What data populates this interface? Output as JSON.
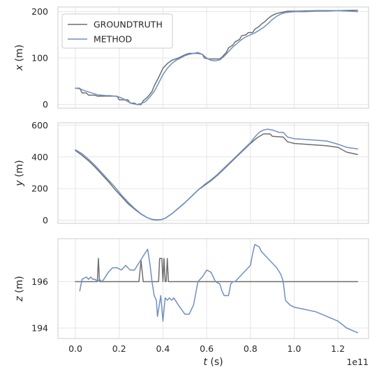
{
  "chart_data": {
    "type": "line",
    "x_axis": {
      "label": "t (s)",
      "label_parts": [
        "t",
        " (s)"
      ],
      "offset_text": "1e11",
      "range": [
        -0.08,
        1.34
      ],
      "ticks": [
        0.0,
        0.2,
        0.4,
        0.6,
        0.8,
        1.0,
        1.2
      ],
      "tick_labels": [
        "0.0",
        "0.2",
        "0.4",
        "0.6",
        "0.8",
        "1.0",
        "1.2"
      ]
    },
    "legend": {
      "location": "upper-left of top panel",
      "entries": [
        {
          "name": "GROUNDTRUTH",
          "color": "#6e6e6e"
        },
        {
          "name": "METHOD",
          "color": "#6f8fc4"
        }
      ]
    },
    "colors": {
      "groundtruth": "#6e6e6e",
      "method": "#6f8fc4"
    },
    "panels": [
      {
        "key": "x",
        "ylabel": "x (m)",
        "ylabel_parts": [
          "x",
          " (m)"
        ],
        "yrange": [
          -8,
          210
        ],
        "yticks": [
          0,
          100,
          200
        ],
        "ytick_labels": [
          "0",
          "100",
          "200"
        ],
        "series": [
          {
            "name": "GROUNDTRUTH",
            "x": [
              0.0,
              0.02,
              0.03,
              0.05,
              0.06,
              0.09,
              0.1,
              0.19,
              0.2,
              0.24,
              0.25,
              0.27,
              0.28,
              0.3,
              0.31,
              0.33,
              0.35,
              0.36,
              0.38,
              0.4,
              0.42,
              0.44,
              0.47,
              0.5,
              0.52,
              0.54,
              0.56,
              0.58,
              0.59,
              0.61,
              0.66,
              0.67,
              0.69,
              0.7,
              0.72,
              0.73,
              0.75,
              0.76,
              0.78,
              0.79,
              0.81,
              0.82,
              0.84,
              0.85,
              0.87,
              0.88,
              0.9,
              0.92,
              0.97,
              1.02,
              1.1,
              1.2,
              1.27,
              1.29
            ],
            "y": [
              35,
              35,
              25,
              25,
              20,
              20,
              18,
              18,
              10,
              10,
              3,
              3,
              0,
              0,
              8,
              16,
              28,
              40,
              58,
              78,
              88,
              95,
              100,
              107,
              110,
              110,
              110,
              108,
              100,
              98,
              98,
              102,
              112,
              122,
              128,
              135,
              140,
              148,
              150,
              155,
              155,
              162,
              168,
              173,
              180,
              185,
              192,
              196,
              201,
              201,
              202,
              202,
              203,
              203
            ]
          },
          {
            "name": "METHOD",
            "x": [
              0.0,
              0.02,
              0.04,
              0.06,
              0.08,
              0.1,
              0.12,
              0.14,
              0.16,
              0.18,
              0.2,
              0.22,
              0.24,
              0.26,
              0.28,
              0.3,
              0.32,
              0.34,
              0.36,
              0.38,
              0.4,
              0.42,
              0.44,
              0.46,
              0.48,
              0.5,
              0.52,
              0.54,
              0.56,
              0.58,
              0.6,
              0.62,
              0.64,
              0.66,
              0.68,
              0.7,
              0.72,
              0.74,
              0.76,
              0.78,
              0.8,
              0.82,
              0.84,
              0.86,
              0.88,
              0.9,
              0.92,
              0.94,
              0.96,
              1.0,
              1.05,
              1.1,
              1.15,
              1.2,
              1.25,
              1.29
            ],
            "y": [
              35,
              34,
              30,
              27,
              24,
              21,
              20,
              19,
              19,
              18,
              16,
              12,
              6,
              2,
              0,
              2,
              6,
              16,
              28,
              46,
              64,
              78,
              88,
              95,
              100,
              105,
              108,
              110,
              112,
              108,
              100,
              95,
              94,
              96,
              104,
              114,
              124,
              132,
              140,
              146,
              150,
              154,
              160,
              166,
              174,
              183,
              190,
              195,
              198,
              200,
              200,
              201,
              201,
              202,
              201,
              200
            ]
          }
        ]
      },
      {
        "key": "y",
        "ylabel": "y (m)",
        "ylabel_parts": [
          "y",
          " (m)"
        ],
        "yrange": [
          -20,
          615
        ],
        "yticks": [
          0,
          200,
          400,
          600
        ],
        "ytick_labels": [
          "0",
          "200",
          "400",
          "600"
        ],
        "series": [
          {
            "name": "GROUNDTRUTH",
            "x": [
              0.0,
              0.03,
              0.06,
              0.09,
              0.12,
              0.15,
              0.18,
              0.21,
              0.24,
              0.27,
              0.3,
              0.33,
              0.35,
              0.37,
              0.39,
              0.41,
              0.44,
              0.47,
              0.5,
              0.53,
              0.56,
              0.59,
              0.62,
              0.65,
              0.68,
              0.71,
              0.74,
              0.77,
              0.8,
              0.83,
              0.86,
              0.89,
              0.9,
              0.95,
              0.97,
              1.0,
              1.05,
              1.1,
              1.15,
              1.2,
              1.24,
              1.29
            ],
            "y": [
              440,
              410,
              375,
              335,
              290,
              245,
              195,
              150,
              105,
              70,
              38,
              15,
              5,
              2,
              3,
              12,
              40,
              75,
              110,
              150,
              190,
              220,
              250,
              285,
              325,
              365,
              405,
              445,
              485,
              520,
              545,
              545,
              530,
              525,
              495,
              485,
              480,
              475,
              470,
              460,
              430,
              415
            ]
          },
          {
            "name": "METHOD",
            "x": [
              0.0,
              0.03,
              0.06,
              0.09,
              0.12,
              0.15,
              0.18,
              0.21,
              0.24,
              0.27,
              0.3,
              0.33,
              0.35,
              0.37,
              0.39,
              0.41,
              0.44,
              0.47,
              0.5,
              0.53,
              0.56,
              0.59,
              0.62,
              0.65,
              0.68,
              0.71,
              0.74,
              0.77,
              0.8,
              0.82,
              0.84,
              0.86,
              0.88,
              0.9,
              0.93,
              0.95,
              0.97,
              1.0,
              1.05,
              1.1,
              1.15,
              1.2,
              1.24,
              1.29
            ],
            "y": [
              445,
              420,
              385,
              345,
              300,
              255,
              210,
              160,
              115,
              75,
              40,
              15,
              4,
              0,
              2,
              12,
              40,
              75,
              110,
              150,
              190,
              225,
              255,
              290,
              330,
              370,
              410,
              450,
              490,
              525,
              555,
              570,
              575,
              570,
              555,
              555,
              525,
              515,
              510,
              505,
              500,
              480,
              460,
              450
            ]
          }
        ]
      },
      {
        "key": "z",
        "ylabel": "z (m)",
        "ylabel_parts": [
          "z",
          " (m)"
        ],
        "yrange": [
          193.55,
          197.85
        ],
        "yticks": [
          194,
          196
        ],
        "ytick_labels": [
          "194",
          "196"
        ],
        "series": [
          {
            "name": "GROUNDTRUTH",
            "x": [
              0.0,
              0.1,
              0.105,
              0.11,
              0.29,
              0.3,
              0.31,
              0.38,
              0.385,
              0.395,
              0.4,
              0.405,
              0.41,
              0.415,
              0.42,
              0.425,
              1.29
            ],
            "y": [
              196.0,
              196.0,
              197.0,
              196.0,
              196.0,
              196.9,
              196.0,
              196.0,
              197.0,
              197.0,
              196.0,
              197.0,
              196.0,
              196.0,
              197.0,
              196.0,
              196.0
            ]
          },
          {
            "name": "METHOD",
            "x": [
              0.02,
              0.03,
              0.05,
              0.06,
              0.07,
              0.08,
              0.09,
              0.1,
              0.11,
              0.12,
              0.13,
              0.15,
              0.17,
              0.19,
              0.21,
              0.23,
              0.25,
              0.27,
              0.29,
              0.31,
              0.33,
              0.34,
              0.35,
              0.36,
              0.37,
              0.375,
              0.38,
              0.39,
              0.4,
              0.41,
              0.42,
              0.43,
              0.44,
              0.45,
              0.47,
              0.5,
              0.52,
              0.54,
              0.56,
              0.58,
              0.6,
              0.62,
              0.64,
              0.66,
              0.67,
              0.68,
              0.7,
              0.71,
              0.72,
              0.73,
              0.74,
              0.75,
              0.76,
              0.78,
              0.8,
              0.81,
              0.82,
              0.84,
              0.85,
              0.86,
              0.88,
              0.9,
              0.92,
              0.94,
              0.95,
              0.96,
              0.98,
              1.0,
              1.05,
              1.1,
              1.15,
              1.2,
              1.24,
              1.29
            ],
            "y": [
              195.6,
              196.1,
              196.2,
              196.1,
              196.2,
              196.1,
              196.1,
              196.0,
              196.1,
              196.0,
              196.1,
              196.4,
              196.6,
              196.6,
              196.5,
              196.7,
              196.5,
              196.5,
              196.8,
              197.1,
              197.4,
              196.8,
              196.0,
              195.4,
              195.2,
              194.5,
              194.8,
              195.4,
              194.3,
              195.3,
              195.2,
              195.3,
              195.2,
              195.3,
              195.0,
              194.6,
              194.6,
              195.0,
              196.0,
              196.2,
              196.5,
              196.4,
              196.0,
              195.9,
              195.6,
              195.4,
              195.4,
              195.9,
              196.0,
              196.0,
              196.1,
              196.2,
              196.3,
              196.5,
              196.7,
              197.2,
              197.6,
              197.5,
              197.3,
              197.2,
              197.0,
              196.8,
              196.6,
              196.3,
              196.0,
              195.2,
              195.0,
              194.9,
              194.8,
              194.7,
              194.5,
              194.3,
              194.0,
              193.8
            ]
          }
        ]
      }
    ]
  }
}
